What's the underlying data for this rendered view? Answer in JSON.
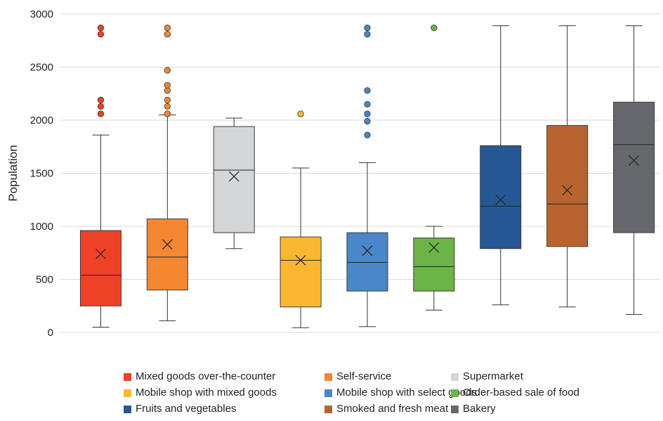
{
  "chart_data": {
    "type": "box",
    "title": "",
    "xlabel": "",
    "ylabel": "Population",
    "ylim": [
      0,
      3000
    ],
    "yticks": [
      "0",
      "500",
      "1000",
      "1500",
      "2000",
      "2500",
      "3000"
    ],
    "grid": "horizontal",
    "legend_position": "bottom",
    "series": [
      {
        "name": "Mixed goods over-the-counter",
        "color": "#ee4226",
        "min": 50,
        "q1": 250,
        "median": 540,
        "q3": 960,
        "max": 1860,
        "mean": 740,
        "outliers": [
          2060,
          2130,
          2190,
          2810,
          2870
        ]
      },
      {
        "name": "Self-service",
        "color": "#f58733",
        "min": 110,
        "q1": 400,
        "median": 710,
        "q3": 1070,
        "max": 2050,
        "mean": 830,
        "outliers": [
          2060,
          2130,
          2190,
          2280,
          2330,
          2470,
          2810,
          2870
        ]
      },
      {
        "name": "Supermarket",
        "color": "#d5d6d8",
        "min": 790,
        "q1": 940,
        "median": 1530,
        "q3": 1940,
        "max": 2020,
        "mean": 1470,
        "outliers": []
      },
      {
        "name": "Mobile shop with mixed goods",
        "color": "#fbb732",
        "min": 45,
        "q1": 240,
        "median": 680,
        "q3": 900,
        "max": 1550,
        "mean": 680,
        "outliers": [
          2060
        ]
      },
      {
        "name": "Mobile shop with select goods",
        "color": "#4a86c8",
        "min": 55,
        "q1": 390,
        "median": 660,
        "q3": 940,
        "max": 1600,
        "mean": 770,
        "outliers": [
          1860,
          1990,
          2060,
          2150,
          2280,
          2810,
          2870
        ]
      },
      {
        "name": "Order-based sale of food",
        "color": "#6cb448",
        "min": 210,
        "q1": 390,
        "median": 620,
        "q3": 890,
        "max": 1000,
        "mean": 800,
        "outliers": [
          2870
        ]
      },
      {
        "name": "Fruits and vegetables",
        "color": "#255895",
        "min": 260,
        "q1": 790,
        "median": 1190,
        "q3": 1760,
        "max": 2890,
        "mean": 1250,
        "outliers": []
      },
      {
        "name": "Smoked and fresh meat",
        "color": "#b9642f",
        "min": 240,
        "q1": 810,
        "median": 1210,
        "q3": 1950,
        "max": 2890,
        "mean": 1340,
        "outliers": []
      },
      {
        "name": "Bakery",
        "color": "#67686d",
        "min": 170,
        "q1": 940,
        "median": 1770,
        "q3": 2170,
        "max": 2890,
        "mean": 1620,
        "outliers": []
      }
    ]
  },
  "legend": [
    {
      "label": "Mixed goods over-the-counter",
      "color": "#ee4226"
    },
    {
      "label": "Self-service",
      "color": "#f58733"
    },
    {
      "label": "Supermarket",
      "color": "#d5d6d8"
    },
    {
      "label": "Mobile shop with mixed goods",
      "color": "#fbb732"
    },
    {
      "label": "Mobile shop with select goods",
      "color": "#4a86c8"
    },
    {
      "label": "Order-based sale of food",
      "color": "#6cb448"
    },
    {
      "label": "Fruits and vegetables",
      "color": "#255895"
    },
    {
      "label": "Smoked and fresh meat",
      "color": "#b9642f"
    },
    {
      "label": "Bakery",
      "color": "#67686d"
    }
  ]
}
